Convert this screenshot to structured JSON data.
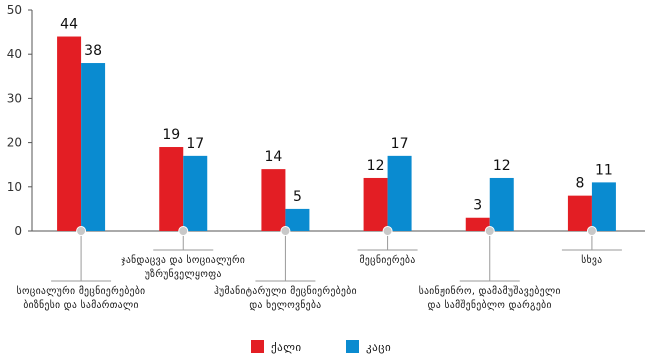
{
  "chart_data": {
    "type": "bar",
    "ylim": [
      0,
      50
    ],
    "yticks": [
      0,
      10,
      20,
      30,
      40,
      50
    ],
    "grid": false,
    "legend_position": "bottom",
    "categories": [
      [
        "სოციალური მეცნიერებები",
        "ბიზნესი და სამართალი"
      ],
      [
        "ჯანდაცვა და სოციალური",
        "უზრუნველყოფა"
      ],
      [
        "ჰუმანიტარული მეცნიერებები",
        "და ხელოვნება"
      ],
      [
        "მეცნიერება"
      ],
      [
        "საინჟინრო, დამამუშავებელი",
        "და სამშენებლო დარგები"
      ],
      [
        "სხვა"
      ]
    ],
    "series": [
      {
        "name": "ქალი",
        "color": "#e31e24",
        "values": [
          44,
          19,
          14,
          12,
          3,
          8
        ]
      },
      {
        "name": "კაცი",
        "color": "#0a8bd0",
        "values": [
          38,
          17,
          5,
          17,
          12,
          11
        ]
      }
    ]
  }
}
